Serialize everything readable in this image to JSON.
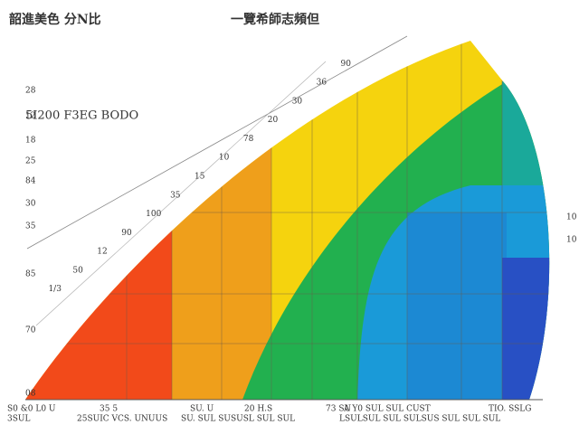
{
  "header": {
    "left_title": "韶進美色 分N比",
    "center_title": "一覽希師志頻但"
  },
  "inner_label": "5I200 F3EG BODO",
  "left_labels": [
    "28",
    "12",
    "18",
    "25",
    "84",
    "30",
    "35",
    "85",
    "70",
    "08"
  ],
  "diagonal_labels": [
    "1/3",
    "50",
    "12",
    "90",
    "100",
    "35",
    "15",
    "10",
    "78",
    "20",
    "30",
    "36",
    "90"
  ],
  "right_labels": [
    "10",
    "10"
  ],
  "bottom_row1": [
    "S0 &0 L0 U",
    "35 5",
    "SU. U",
    "20 H.S",
    "73 SU",
    "A Y0 SUL SUL CUST",
    "TIO. SSLG"
  ],
  "bottom_row2": [
    "3SUL",
    "25SUIC VCS. UNUUS",
    "SU. SUL SUSUSL SUL SUL",
    "LSULSUL SUL SULSUS SUL SUL SUL"
  ]
}
